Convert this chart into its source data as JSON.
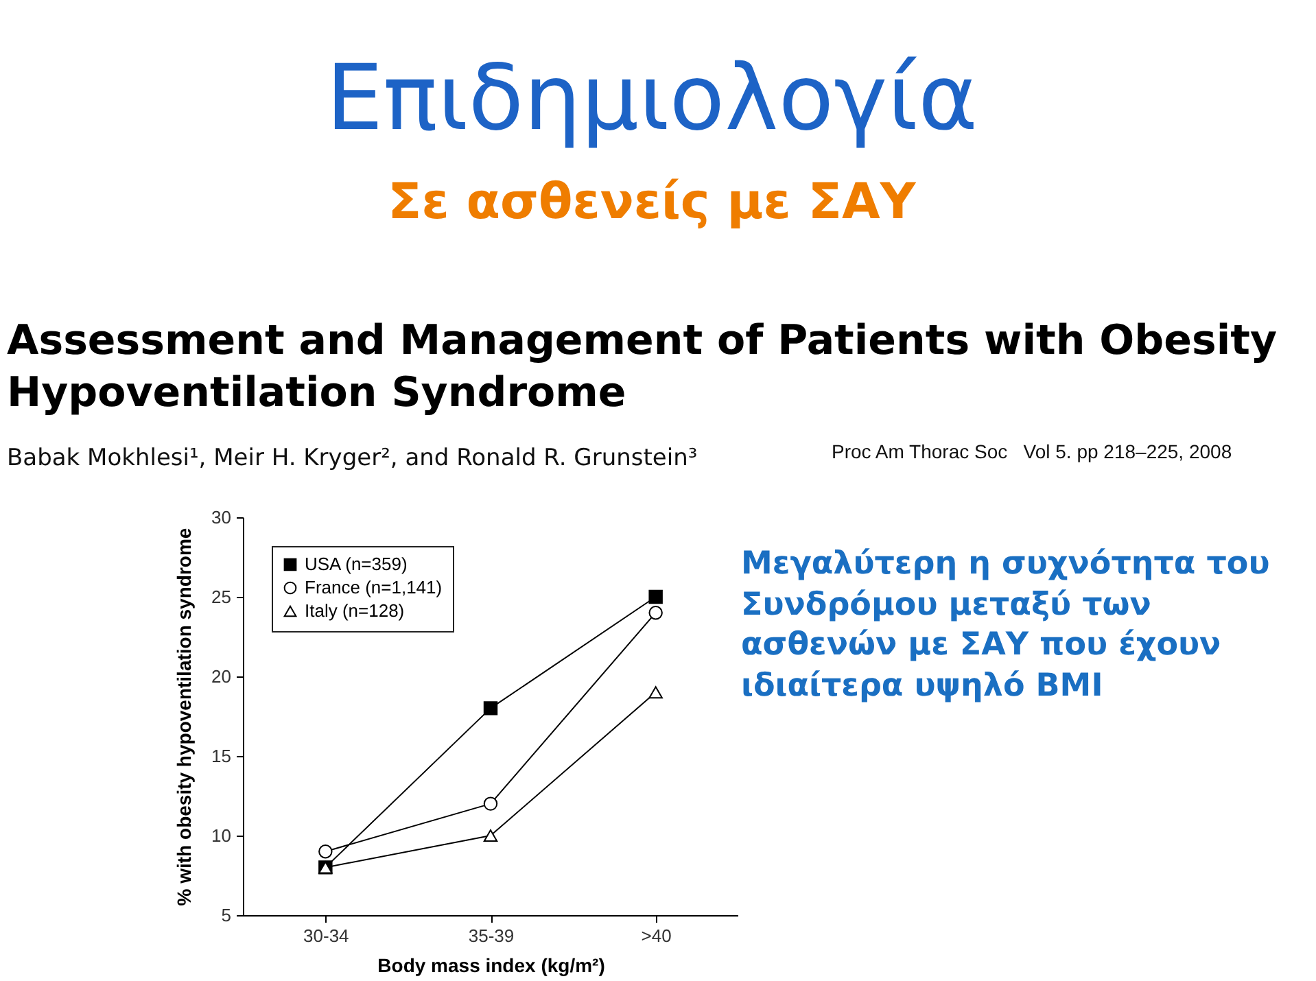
{
  "chart_data": {
    "type": "line",
    "title": "Επιδημιολογία",
    "subtitle": "Σε ασθενείς με ΣΑΥ",
    "xlabel": "Body mass index (kg/m²)",
    "ylabel": "% with obesity hypoventilation syndrome",
    "categories": [
      "30-34",
      "35-39",
      ">40"
    ],
    "series": [
      {
        "name": "USA (n=359)",
        "color": "#000000",
        "marker": "square",
        "values": [
          8,
          18,
          25
        ]
      },
      {
        "name": "France (n=1,141)",
        "color": "#000000",
        "marker": "circle",
        "values": [
          9,
          12,
          24
        ]
      },
      {
        "name": "Italy (n=128)",
        "color": "#000000",
        "marker": "triangle",
        "values": [
          8,
          10,
          19
        ]
      }
    ],
    "ylim": [
      5,
      30
    ],
    "yticks": [
      5,
      10,
      15,
      20,
      25,
      30
    ],
    "legend": "top left",
    "line_style": "solid",
    "annotations": [
      "Assessment and Management of Patients with Obesity Hypoventilation Syndrome",
      "Babak Mokhlesi¹, Meir H. Kryger², and Ronald R. Grunstein³",
      "Proc Am Thorac Soc   Vol 5. pp 218–225, 2008",
      "Μεγαλύτερη η συχνότητα του Συνδρόμου μεταξύ των ασθενών με ΣΑΥ που έχουν ιδιαίτερα υψηλό BMI"
    ]
  }
}
